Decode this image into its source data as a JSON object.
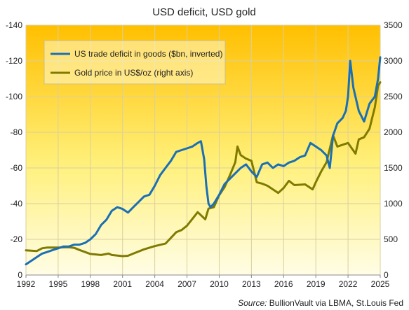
{
  "chart_data": {
    "type": "line",
    "title": "USD deficit, USD gold",
    "source_prefix": "Source:",
    "source_text": " BullionVault via LBMA, St.Louis Fed",
    "grid": true,
    "legend_placement": "top-left",
    "x_ticks": [
      "1992",
      "1995",
      "1998",
      "2001",
      "2004",
      "2007",
      "2010",
      "2013",
      "2016",
      "2019",
      "2022",
      "2025"
    ],
    "xlim": [
      1992,
      2025
    ],
    "left_axis": {
      "ticks": [
        "-140",
        "-120",
        "-100",
        "-80",
        "-60",
        "-40",
        "-20",
        "0"
      ],
      "ylim": [
        0,
        -140
      ],
      "inverted": true
    },
    "right_axis": {
      "ticks": [
        "3500",
        "3000",
        "2500",
        "2000",
        "1500",
        "1000",
        "500",
        "0"
      ],
      "ylim": [
        0,
        3500
      ]
    },
    "colors": {
      "deficit": "#1a6fb5",
      "gold": "#7f7a00",
      "bg_top": "#ffbf00",
      "bg_bottom": "#fffce0"
    },
    "series": [
      {
        "name": "US trade deficit in goods ($bn, inverted)",
        "axis": "left",
        "x": [
          1992,
          1992.5,
          1993,
          1993.5,
          1994,
          1994.5,
          1995,
          1995.5,
          1996,
          1996.5,
          1997,
          1997.5,
          1998,
          1998.5,
          1999,
          1999.5,
          2000,
          2000.5,
          2001,
          2001.5,
          2002,
          2002.5,
          2003,
          2003.5,
          2004,
          2004.5,
          2005,
          2005.5,
          2006,
          2006.5,
          2007,
          2007.5,
          2008,
          2008.3,
          2008.6,
          2008.8,
          2009,
          2009.2,
          2009.5,
          2010,
          2010.5,
          2011,
          2011.5,
          2012,
          2012.5,
          2013,
          2013.5,
          2014,
          2014.5,
          2015,
          2015.5,
          2016,
          2016.5,
          2017,
          2017.5,
          2018,
          2018.5,
          2019,
          2019.5,
          2020,
          2020.3,
          2020.6,
          2021,
          2021.5,
          2021.8,
          2022,
          2022.2,
          2022.5,
          2023,
          2023.5,
          2024,
          2024.5,
          2024.8,
          2025
        ],
        "y": [
          -6,
          -8,
          -10,
          -12,
          -13,
          -14,
          -15,
          -16,
          -16,
          -17,
          -17,
          -18,
          -20,
          -23,
          -28,
          -31,
          -36,
          -38,
          -37,
          -35,
          -38,
          -41,
          -44,
          -45,
          -50,
          -56,
          -60,
          -64,
          -69,
          -70,
          -71,
          -72,
          -74,
          -75,
          -65,
          -50,
          -40,
          -38,
          -40,
          -45,
          -51,
          -54,
          -57,
          -60,
          -62,
          -58,
          -55,
          -62,
          -63,
          -60,
          -62,
          -61,
          -63,
          -64,
          -66,
          -67,
          -74,
          -72,
          -70,
          -67,
          -60,
          -78,
          -85,
          -88,
          -92,
          -100,
          -120,
          -105,
          -92,
          -86,
          -96,
          -100,
          -110,
          -122
        ]
      },
      {
        "name": "Gold price in US$/oz (right axis)",
        "axis": "right",
        "x": [
          1992,
          1993,
          1993.5,
          1994,
          1995,
          1996,
          1996.5,
          1997,
          1998,
          1999,
          1999.7,
          2000,
          2001,
          2001.5,
          2002,
          2003,
          2004,
          2005,
          2006,
          2006.5,
          2007,
          2008,
          2008.7,
          2009,
          2009.5,
          2010,
          2010.5,
          2011,
          2011.5,
          2011.7,
          2012,
          2012.5,
          2013,
          2013.5,
          2014,
          2014.5,
          2015,
          2015.5,
          2016,
          2016.5,
          2017,
          2018,
          2018.7,
          2019,
          2019.5,
          2020,
          2020.6,
          2021,
          2022,
          2022.7,
          2023,
          2023.5,
          2024,
          2024.5,
          2024.8,
          2025
        ],
        "y": [
          345,
          335,
          375,
          385,
          385,
          390,
          380,
          350,
          295,
          280,
          300,
          280,
          265,
          270,
          300,
          360,
          405,
          440,
          600,
          630,
          690,
          880,
          780,
          930,
          950,
          1120,
          1230,
          1400,
          1580,
          1800,
          1680,
          1630,
          1600,
          1300,
          1280,
          1250,
          1200,
          1150,
          1220,
          1320,
          1260,
          1270,
          1200,
          1300,
          1450,
          1580,
          1960,
          1800,
          1850,
          1700,
          1900,
          1930,
          2050,
          2350,
          2650,
          2700
        ]
      }
    ]
  }
}
